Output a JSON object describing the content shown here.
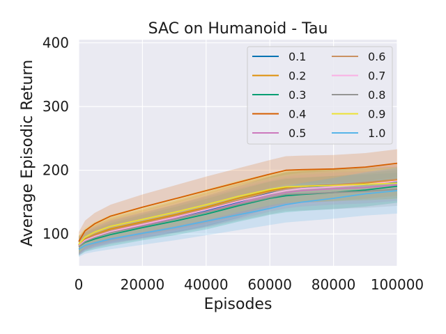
{
  "chart_data": {
    "type": "line",
    "title": "SAC on Humanoid - Tau",
    "xlabel": "Episodes",
    "ylabel": "Average Episodic Return",
    "xlim": [
      0,
      100000
    ],
    "ylim": [
      50,
      405
    ],
    "xticks": [
      0,
      20000,
      40000,
      60000,
      80000,
      100000
    ],
    "xtick_labels": [
      "0",
      "20000",
      "40000",
      "60000",
      "80000",
      "100000"
    ],
    "yticks": [
      100,
      200,
      300,
      400
    ],
    "ytick_labels": [
      "100",
      "200",
      "300",
      "400"
    ],
    "grid": true,
    "legend": {
      "placement": "top-right",
      "columns": 2
    },
    "x": [
      0,
      2000,
      5000,
      10000,
      20000,
      30000,
      40000,
      50000,
      60000,
      65000,
      70000,
      80000,
      90000,
      100000
    ],
    "series": [
      {
        "name": "0.1",
        "color": "#0173b2",
        "values": [
          82,
          90,
          96,
          104,
          114,
          124,
          136,
          150,
          165,
          172,
          174,
          176,
          178,
          181
        ],
        "band": [
          14,
          15,
          16,
          18,
          20,
          22,
          24,
          25,
          25,
          25,
          25,
          25,
          25,
          25
        ]
      },
      {
        "name": "0.2",
        "color": "#de8f05",
        "values": [
          83,
          92,
          99,
          108,
          119,
          130,
          142,
          156,
          168,
          173,
          175,
          177,
          180,
          184
        ],
        "band": [
          14,
          15,
          16,
          18,
          20,
          22,
          24,
          25,
          25,
          25,
          25,
          25,
          25,
          25
        ]
      },
      {
        "name": "0.3",
        "color": "#029e73",
        "values": [
          80,
          87,
          92,
          99,
          110,
          120,
          131,
          144,
          156,
          160,
          162,
          165,
          169,
          175
        ],
        "band": [
          14,
          15,
          16,
          18,
          20,
          22,
          24,
          25,
          26,
          26,
          26,
          26,
          26,
          26
        ]
      },
      {
        "name": "0.4",
        "color": "#d55e00",
        "values": [
          88,
          105,
          116,
          128,
          142,
          155,
          168,
          181,
          194,
          200,
          201,
          202,
          205,
          211
        ],
        "band": [
          15,
          16,
          17,
          18,
          20,
          21,
          22,
          22,
          22,
          22,
          22,
          22,
          22,
          22
        ]
      },
      {
        "name": "0.5",
        "color": "#cc78bc",
        "values": [
          81,
          89,
          95,
          103,
          113,
          124,
          135,
          148,
          160,
          165,
          168,
          171,
          173,
          177
        ],
        "band": [
          14,
          15,
          16,
          18,
          20,
          22,
          24,
          25,
          25,
          25,
          25,
          25,
          25,
          25
        ]
      },
      {
        "name": "0.6",
        "color": "#ca9161",
        "values": [
          82,
          91,
          98,
          106,
          117,
          128,
          140,
          153,
          166,
          171,
          174,
          177,
          181,
          186
        ],
        "band": [
          14,
          15,
          16,
          18,
          20,
          22,
          24,
          25,
          25,
          25,
          25,
          25,
          25,
          25
        ]
      },
      {
        "name": "0.7",
        "color": "#fbafe4",
        "values": [
          81,
          90,
          96,
          104,
          115,
          126,
          138,
          151,
          163,
          168,
          171,
          174,
          178,
          183
        ],
        "band": [
          14,
          15,
          16,
          18,
          20,
          22,
          24,
          25,
          25,
          25,
          25,
          25,
          25,
          25
        ]
      },
      {
        "name": "0.8",
        "color": "#949494",
        "values": [
          80,
          88,
          94,
          102,
          112,
          123,
          134,
          146,
          157,
          162,
          163,
          165,
          167,
          170
        ],
        "band": [
          14,
          15,
          16,
          18,
          20,
          22,
          24,
          25,
          26,
          26,
          26,
          26,
          26,
          26
        ]
      },
      {
        "name": "0.9",
        "color": "#ece133",
        "values": [
          84,
          95,
          103,
          112,
          123,
          134,
          146,
          159,
          170,
          174,
          175,
          176,
          178,
          180
        ],
        "band": [
          14,
          15,
          16,
          18,
          20,
          22,
          24,
          25,
          25,
          25,
          25,
          25,
          25,
          25
        ]
      },
      {
        "name": "1.0",
        "color": "#56b4e9",
        "values": [
          76,
          82,
          86,
          92,
          101,
          110,
          120,
          130,
          140,
          146,
          150,
          156,
          163,
          168
        ],
        "band": [
          12,
          13,
          14,
          16,
          18,
          20,
          22,
          24,
          26,
          28,
          30,
          32,
          34,
          36
        ]
      }
    ]
  }
}
